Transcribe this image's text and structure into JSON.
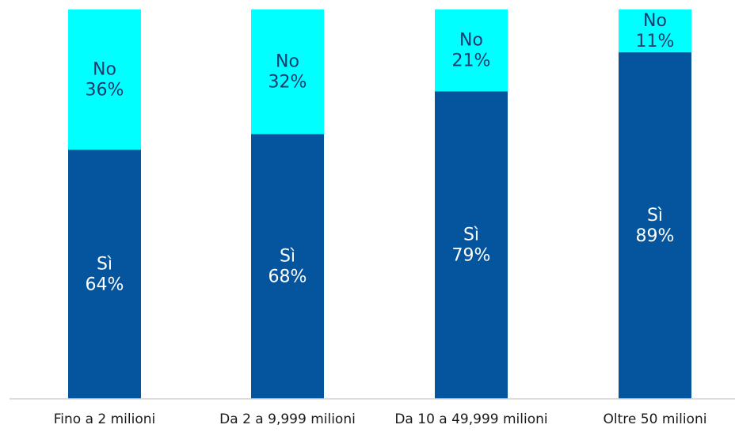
{
  "chart_data": {
    "type": "bar",
    "stacked": true,
    "percent": true,
    "categories": [
      "Fino a 2 milioni",
      "Da 2 a 9,999 milioni",
      "Da 10 a 49,999 milioni",
      "Oltre 50 milioni"
    ],
    "series": [
      {
        "name": "Sì",
        "values": [
          64,
          68,
          79,
          89
        ],
        "color": "#04559e",
        "label_color": "#ffffff"
      },
      {
        "name": "No",
        "values": [
          36,
          32,
          21,
          11
        ],
        "color": "#00ffff",
        "label_color": "#1a3a6e"
      }
    ],
    "data_labels": {
      "Sì": [
        "64%",
        "68%",
        "79%",
        "89%"
      ],
      "No": [
        "36%",
        "32%",
        "21%",
        "11%"
      ]
    },
    "ylim": [
      0,
      100
    ],
    "grid": false,
    "legend": "none",
    "title": "",
    "xlabel": "",
    "ylabel": ""
  }
}
